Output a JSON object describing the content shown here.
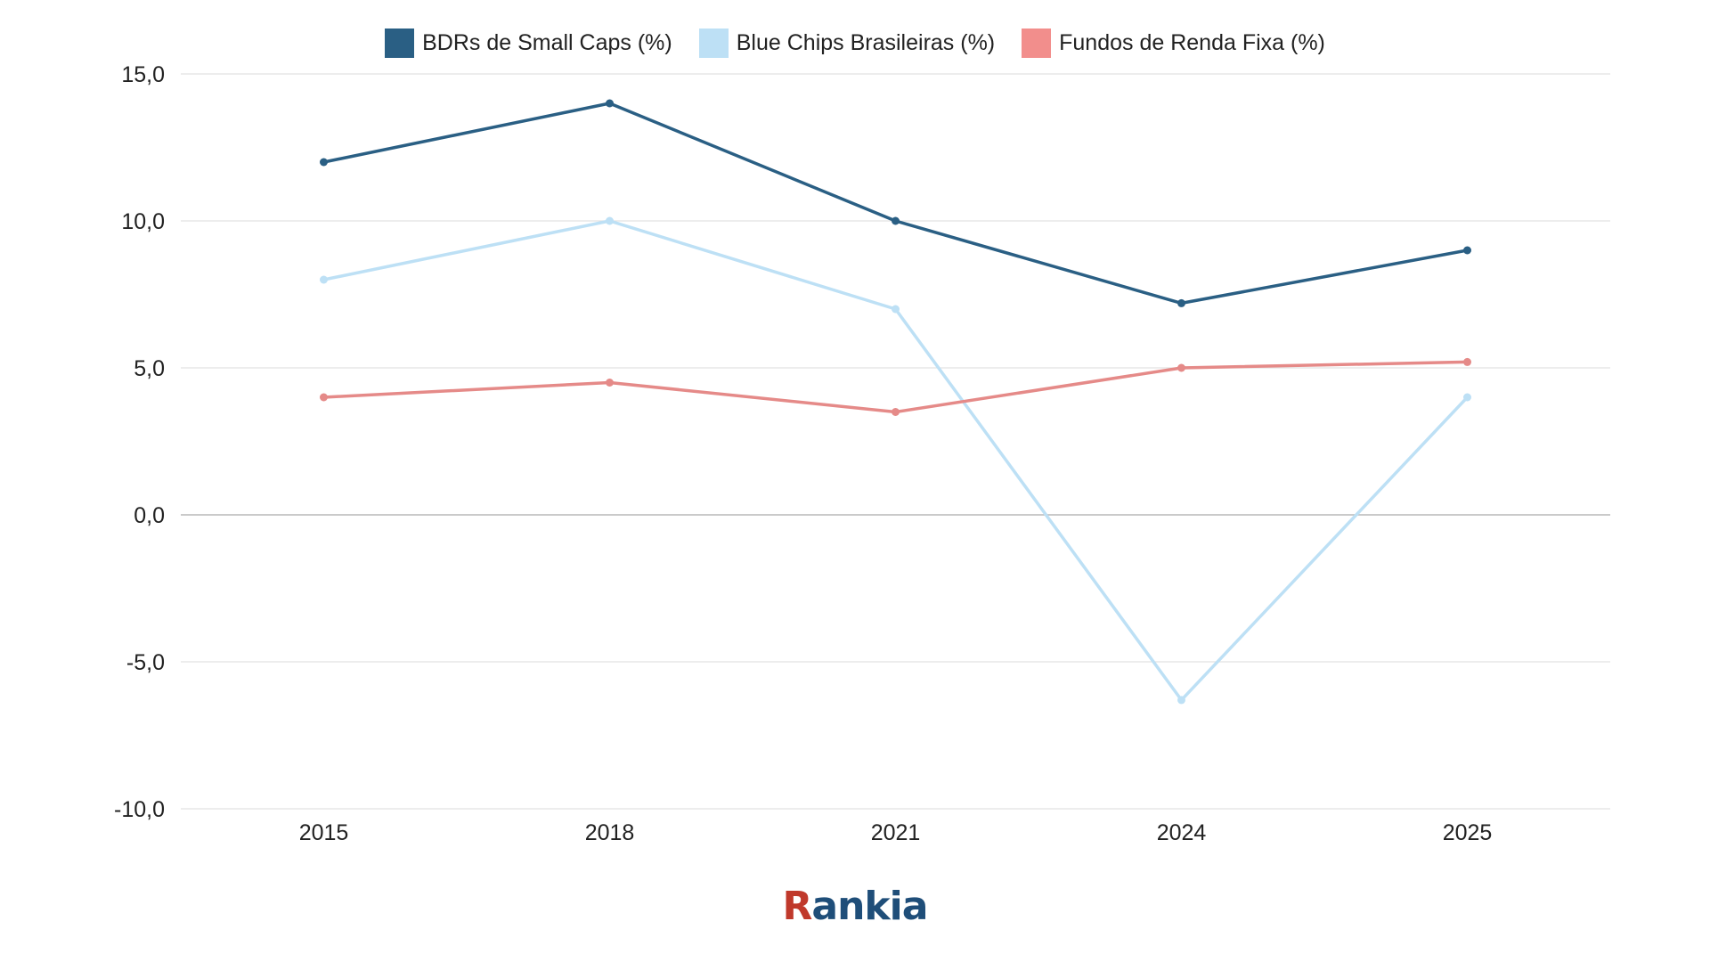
{
  "chart_data": {
    "type": "line",
    "categories": [
      "2015",
      "2018",
      "2021",
      "2024",
      "2025"
    ],
    "ylim": [
      -10,
      15
    ],
    "yticks": [
      "15,0",
      "10,0",
      "5,0",
      "0,0",
      "-5,0",
      "-10,0"
    ],
    "ytick_values": [
      15,
      10,
      5,
      0,
      -5,
      -10
    ],
    "grid": true,
    "legend_position": "top-center",
    "series": [
      {
        "name": "BDRs de Small Caps (%)",
        "color": "#2a5f84",
        "values": [
          12,
          14,
          10,
          7.2,
          9
        ]
      },
      {
        "name": "Blue Chips Brasileiras (%)",
        "color": "#bde0f5",
        "values": [
          8,
          10,
          7,
          -6.3,
          4
        ]
      },
      {
        "name": "Fundos de Renda Fixa (%)",
        "color": "#e58a88",
        "values": [
          4,
          4.5,
          3.5,
          5,
          5.2
        ]
      }
    ],
    "legend_swatch_colors": [
      "#2a5f84",
      "#bde0f5",
      "#f28e8c"
    ]
  },
  "logo": {
    "first_letter": "R",
    "rest": "ankia"
  }
}
